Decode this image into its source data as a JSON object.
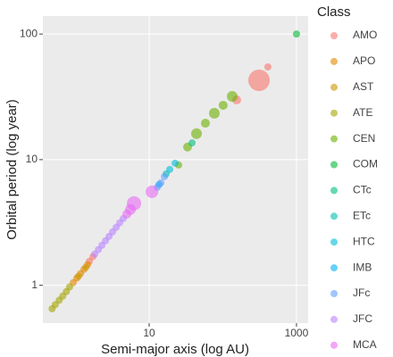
{
  "chart_data": {
    "type": "scatter",
    "xlabel": "Semi-major axis (log AU)",
    "ylabel": "Orbital period (log year)",
    "legend_title": "Class",
    "xlog": true,
    "ylog": true,
    "xlim": [
      0.36,
      1440
    ],
    "ylim": [
      0.5,
      139
    ],
    "xticks": [
      10,
      1000
    ],
    "yticks": [
      1,
      10,
      100
    ],
    "grid": true,
    "legend": "right",
    "series": [
      {
        "name": "AMO",
        "color": "#F8766D",
        "x": [
          1.54,
          1.72,
          154,
          310,
          409
        ],
        "values": [
          1.55,
          1.69,
          29.9,
          42.8,
          54.7
        ],
        "size": [
          4,
          4,
          5,
          12,
          4
        ]
      },
      {
        "name": "APO",
        "color": "#E58700",
        "x": [
          0.93,
          1.04,
          1.17,
          1.3,
          1.46
        ],
        "values": [
          1.05,
          1.14,
          1.24,
          1.34,
          1.46
        ]
      },
      {
        "name": "AST",
        "color": "#C99800",
        "x": [
          1.1,
          1.38
        ],
        "values": [
          1.18,
          1.39
        ]
      },
      {
        "name": "ATE",
        "color": "#A3A500",
        "x": [
          0.48,
          0.53,
          0.6,
          0.67,
          0.75,
          0.83
        ],
        "values": [
          0.65,
          0.7,
          0.76,
          0.82,
          0.89,
          0.97
        ]
      },
      {
        "name": "CEN",
        "color": "#6BB100",
        "x": [
          25.1,
          33.2,
          43.9,
          58.0,
          76.7,
          101,
          134
        ],
        "values": [
          9.06,
          12.6,
          16.1,
          19.5,
          23.4,
          27.1,
          31.9
        ],
        "size": [
          4,
          5,
          6,
          5,
          6,
          5,
          6
        ]
      },
      {
        "name": "COM",
        "color": "#00BA38",
        "x": [
          1000
        ],
        "values": [
          100
        ]
      },
      {
        "name": "CTc",
        "color": "#00BF7D",
        "x": [
          38.2
        ],
        "values": [
          13.6
        ]
      },
      {
        "name": "ETc",
        "color": "#00C0AF",
        "x": [
          17.0
        ],
        "values": [
          7.7
        ]
      },
      {
        "name": "HTC",
        "color": "#00BCD8",
        "x": [
          19.0,
          22.5
        ],
        "values": [
          8.36,
          9.37
        ]
      },
      {
        "name": "IMB",
        "color": "#00B0F6",
        "x": [
          13.6
        ],
        "values": [
          6.33
        ]
      },
      {
        "name": "JFc",
        "color": "#619CFF",
        "x": [
          12.9,
          14.4,
          16.1
        ],
        "values": [
          6.03,
          6.54,
          7.33
        ]
      },
      {
        "name": "JFC",
        "color": "#B983FF",
        "x": [
          1.82,
          2.04,
          2.28,
          2.55,
          2.85,
          3.18,
          3.56,
          3.98,
          4.45
        ],
        "values": [
          1.77,
          1.92,
          2.08,
          2.26,
          2.45,
          2.66,
          2.89,
          3.14,
          3.4
        ]
      },
      {
        "name": "MCA",
        "color": "#E76BF3",
        "x": [
          4.98,
          5.56,
          6.22,
          10.9
        ],
        "values": [
          3.69,
          4.01,
          4.49,
          5.55
        ],
        "size": [
          5,
          6,
          8,
          7
        ]
      }
    ]
  }
}
